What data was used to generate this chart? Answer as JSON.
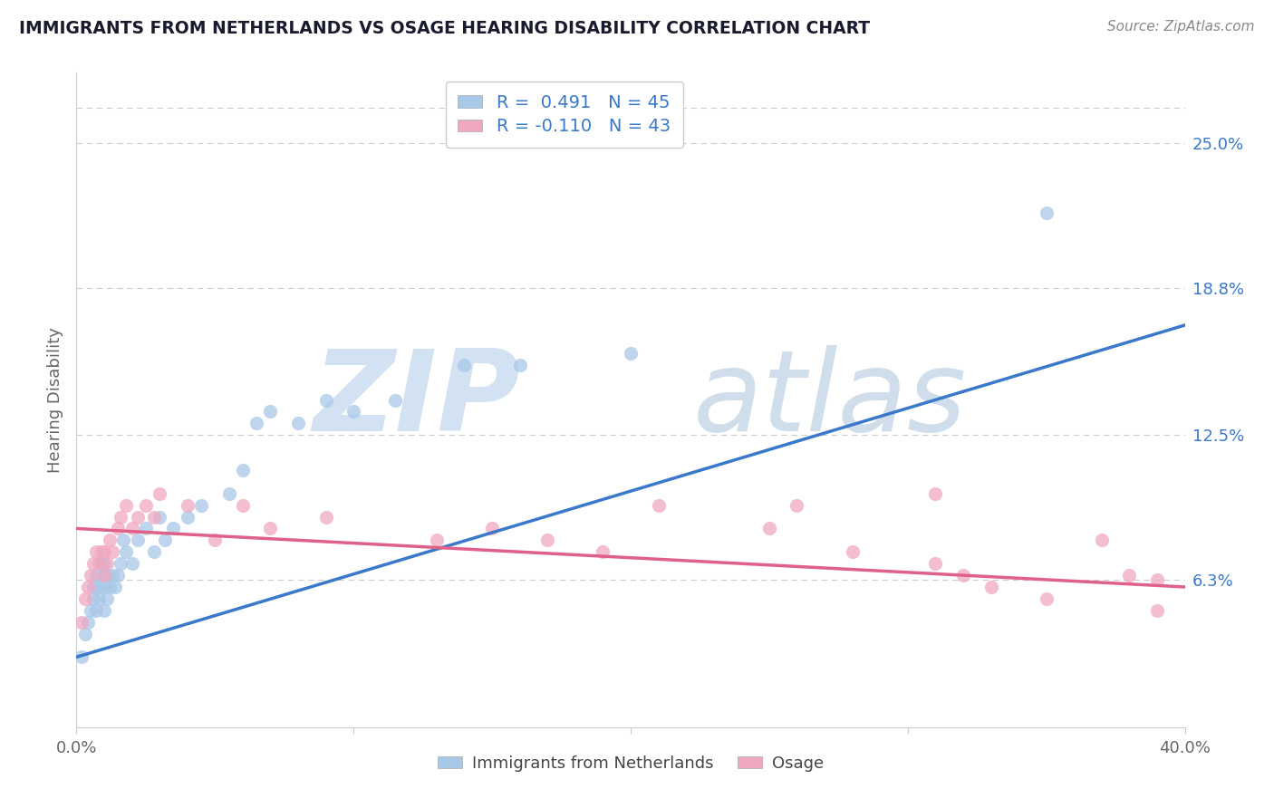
{
  "title": "IMMIGRANTS FROM NETHERLANDS VS OSAGE HEARING DISABILITY CORRELATION CHART",
  "source": "Source: ZipAtlas.com",
  "ylabel": "Hearing Disability",
  "legend_label1": "Immigrants from Netherlands",
  "legend_label2": "Osage",
  "R1": 0.491,
  "N1": 45,
  "R2": -0.11,
  "N2": 43,
  "color1": "#a8c8e8",
  "color2": "#f0a8c0",
  "line_color1": "#3a78c9",
  "line_color2": "#e0608a",
  "xlim": [
    0.0,
    0.4
  ],
  "ylim": [
    0.0,
    0.28
  ],
  "yticks": [
    0.063,
    0.125,
    0.188,
    0.25
  ],
  "ytick_labels": [
    "6.3%",
    "12.5%",
    "18.8%",
    "25.0%"
  ],
  "background_color": "#ffffff",
  "title_color": "#1a1a2e",
  "source_color": "#888888",
  "blue_x": [
    0.002,
    0.003,
    0.004,
    0.005,
    0.006,
    0.006,
    0.007,
    0.007,
    0.008,
    0.008,
    0.009,
    0.009,
    0.01,
    0.01,
    0.01,
    0.011,
    0.011,
    0.012,
    0.013,
    0.014,
    0.015,
    0.016,
    0.017,
    0.018,
    0.02,
    0.022,
    0.025,
    0.028,
    0.03,
    0.032,
    0.035,
    0.04,
    0.045,
    0.055,
    0.06,
    0.065,
    0.07,
    0.08,
    0.09,
    0.1,
    0.115,
    0.14,
    0.16,
    0.2,
    0.35
  ],
  "blue_y": [
    0.03,
    0.04,
    0.045,
    0.05,
    0.055,
    0.06,
    0.065,
    0.05,
    0.055,
    0.06,
    0.065,
    0.07,
    0.05,
    0.06,
    0.07,
    0.055,
    0.065,
    0.06,
    0.065,
    0.06,
    0.065,
    0.07,
    0.08,
    0.075,
    0.07,
    0.08,
    0.085,
    0.075,
    0.09,
    0.08,
    0.085,
    0.09,
    0.095,
    0.1,
    0.11,
    0.13,
    0.135,
    0.13,
    0.14,
    0.135,
    0.14,
    0.155,
    0.155,
    0.16,
    0.22
  ],
  "pink_x": [
    0.002,
    0.003,
    0.004,
    0.005,
    0.006,
    0.007,
    0.008,
    0.009,
    0.01,
    0.01,
    0.011,
    0.012,
    0.013,
    0.015,
    0.016,
    0.018,
    0.02,
    0.022,
    0.025,
    0.028,
    0.03,
    0.04,
    0.05,
    0.06,
    0.07,
    0.09,
    0.13,
    0.15,
    0.17,
    0.19,
    0.21,
    0.25,
    0.28,
    0.31,
    0.32,
    0.33,
    0.35,
    0.37,
    0.38,
    0.39,
    0.39,
    0.31,
    0.26
  ],
  "pink_y": [
    0.045,
    0.055,
    0.06,
    0.065,
    0.07,
    0.075,
    0.07,
    0.075,
    0.065,
    0.075,
    0.07,
    0.08,
    0.075,
    0.085,
    0.09,
    0.095,
    0.085,
    0.09,
    0.095,
    0.09,
    0.1,
    0.095,
    0.08,
    0.095,
    0.085,
    0.09,
    0.08,
    0.085,
    0.08,
    0.075,
    0.095,
    0.085,
    0.075,
    0.07,
    0.065,
    0.06,
    0.055,
    0.08,
    0.065,
    0.063,
    0.05,
    0.1,
    0.095
  ],
  "blue_trend": [
    0.03,
    0.172
  ],
  "pink_trend": [
    0.085,
    0.06
  ]
}
